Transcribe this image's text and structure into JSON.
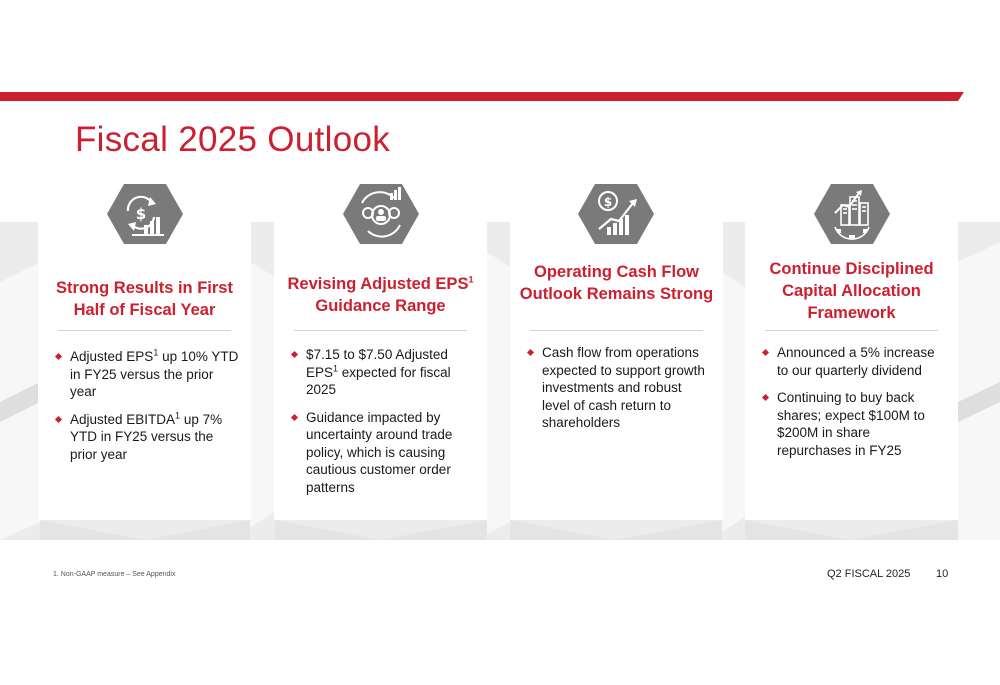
{
  "colors": {
    "accent": "#cc1f2f",
    "icon_gray": "#7a7a7a",
    "card_bg": "#ffffff",
    "band_bg": "#ececec"
  },
  "title": "Fiscal 2025 Outlook",
  "cards": [
    {
      "icon": "dollar-cycle-bars-icon",
      "heading": "Strong Results in First Half of Fiscal Year",
      "bullets": [
        {
          "pre": "Adjusted EPS",
          "sup": "1",
          "post": " up 10% YTD in FY25 versus the prior year"
        },
        {
          "pre": "Adjusted EBITDA",
          "sup": "1",
          "post": " up 7% YTD in FY25 versus the prior year"
        }
      ]
    },
    {
      "icon": "gears-people-cycle-icon",
      "heading_pre": "Revising Adjusted EPS",
      "heading_sup": "1",
      "heading_post": " Guidance Range",
      "bullets": [
        {
          "pre": "$7.15 to $7.50 Adjusted EPS",
          "sup": "1",
          "post": " expected for fiscal 2025"
        },
        {
          "pre": "Guidance impacted by uncertainty around trade policy, which is causing cautious customer order patterns",
          "sup": "",
          "post": ""
        }
      ]
    },
    {
      "icon": "dollar-growth-chart-icon",
      "heading": "Operating Cash Flow Outlook Remains Strong",
      "bullets": [
        {
          "pre": "Cash flow from operations expected to support growth investments and robust level of cash return to shareholders",
          "sup": "",
          "post": ""
        }
      ]
    },
    {
      "icon": "buildings-gear-growth-icon",
      "heading": "Continue Disciplined Capital Allocation Framework",
      "bullets": [
        {
          "pre": "Announced a 5% increase to our quarterly dividend",
          "sup": "",
          "post": ""
        },
        {
          "pre": "Continuing to buy back shares; expect $100M to $200M in share repurchases in FY25",
          "sup": "",
          "post": ""
        }
      ]
    }
  ],
  "footnote": "1. Non-GAAP measure – See Appendix",
  "footer": {
    "label": "Q2 FISCAL 2025",
    "page": "10"
  }
}
